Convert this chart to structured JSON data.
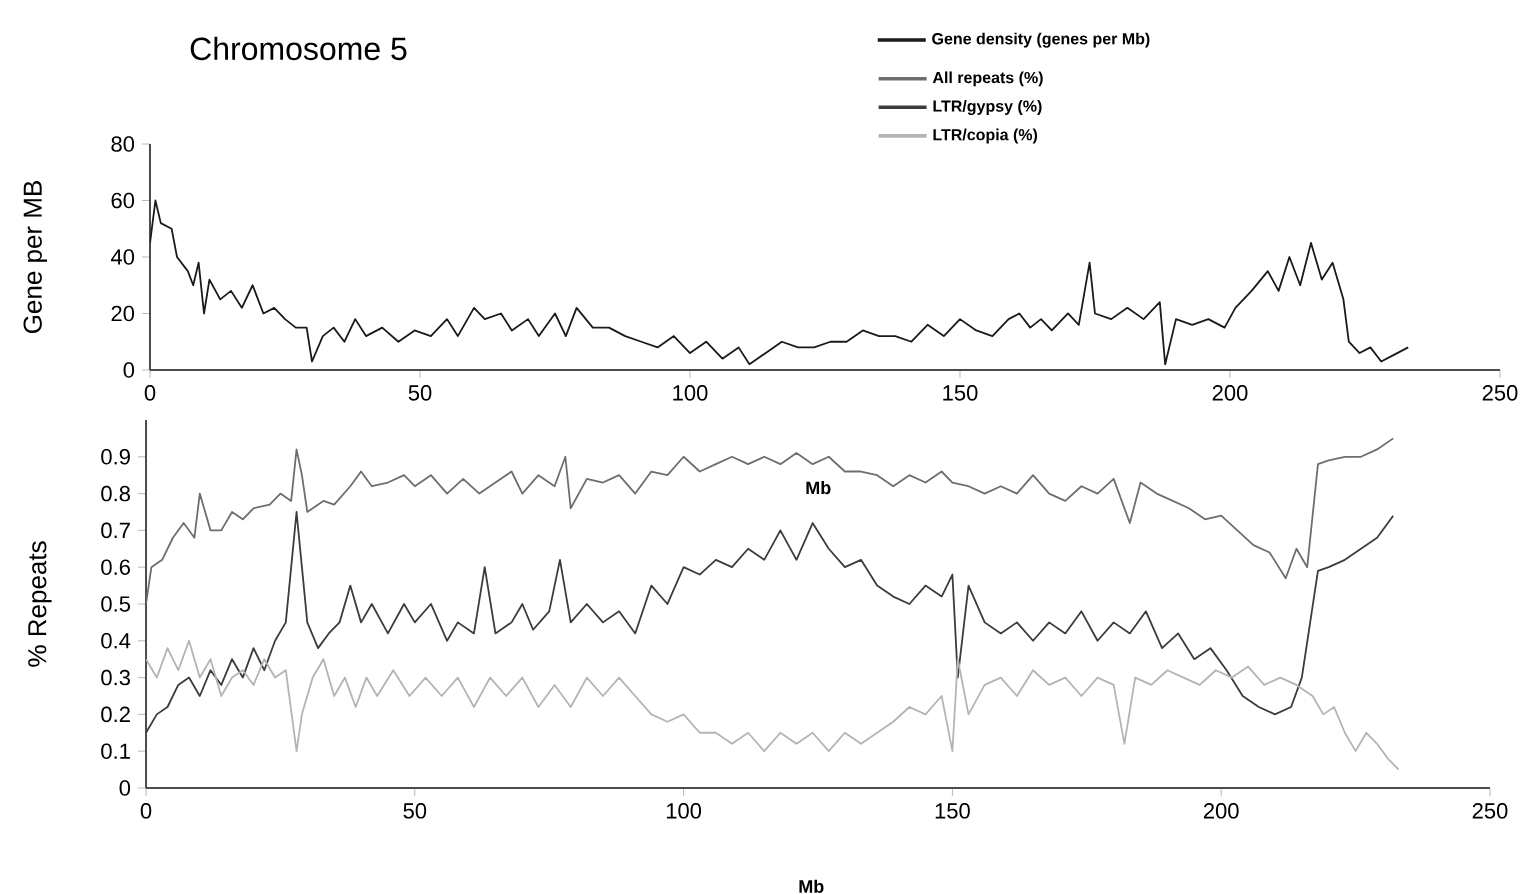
{
  "chart_data": [
    {
      "type": "line",
      "title": "Chromosome 5",
      "xlabel": "Mb",
      "ylabel": "Gene per MB",
      "xlim": [
        0,
        250
      ],
      "xticks": [
        0,
        50,
        100,
        150,
        200,
        250
      ],
      "ylim": [
        0,
        80
      ],
      "yticks": [
        0,
        20,
        40,
        60,
        80
      ],
      "legend": "top right",
      "series": [
        {
          "name": "Gene density (genes per Mb)",
          "color": "#1a1a1a",
          "x": [
            0,
            1,
            2,
            4,
            5,
            7,
            8,
            9,
            10,
            11,
            13,
            15,
            17,
            19,
            21,
            23,
            25,
            27,
            29,
            30,
            32,
            34,
            36,
            38,
            40,
            43,
            46,
            49,
            52,
            55,
            57,
            60,
            62,
            65,
            67,
            70,
            72,
            75,
            77,
            79,
            82,
            85,
            88,
            91,
            94,
            97,
            100,
            103,
            106,
            109,
            111,
            114,
            117,
            120,
            123,
            126,
            129,
            132,
            135,
            138,
            141,
            144,
            147,
            150,
            153,
            156,
            159,
            161,
            163,
            165,
            167,
            170,
            172,
            174,
            175,
            178,
            181,
            184,
            187,
            188,
            190,
            193,
            196,
            199,
            201,
            204,
            207,
            209,
            211,
            213,
            215,
            217,
            219,
            221,
            222,
            224,
            226,
            228,
            230,
            233
          ],
          "values": [
            45,
            60,
            52,
            50,
            40,
            35,
            30,
            38,
            20,
            32,
            25,
            28,
            22,
            30,
            20,
            22,
            18,
            15,
            15,
            3,
            12,
            15,
            10,
            18,
            12,
            15,
            10,
            14,
            12,
            18,
            12,
            22,
            18,
            20,
            14,
            18,
            12,
            20,
            12,
            22,
            15,
            15,
            12,
            10,
            8,
            12,
            6,
            10,
            4,
            8,
            2,
            6,
            10,
            8,
            8,
            10,
            10,
            14,
            12,
            12,
            10,
            16,
            12,
            18,
            14,
            12,
            18,
            20,
            15,
            18,
            14,
            20,
            16,
            38,
            20,
            18,
            22,
            18,
            24,
            2,
            18,
            16,
            18,
            15,
            22,
            28,
            35,
            28,
            40,
            30,
            45,
            32,
            38,
            25,
            10,
            6,
            8,
            3,
            5,
            8
          ]
        }
      ]
    },
    {
      "type": "line",
      "xlabel": "Mb",
      "ylabel": "% Repeats",
      "xlim": [
        0,
        250
      ],
      "xticks": [
        0,
        50,
        100,
        150,
        200,
        250
      ],
      "ylim": [
        0,
        1
      ],
      "yticks": [
        0,
        0.1,
        0.2,
        0.3,
        0.4,
        0.5,
        0.6,
        0.7,
        0.8,
        0.9
      ],
      "legend": "top right",
      "series": [
        {
          "name": "All repeats (%)",
          "color": "#6e6e6e",
          "x": [
            0,
            1,
            3,
            5,
            7,
            9,
            10,
            12,
            14,
            16,
            18,
            20,
            23,
            25,
            27,
            28,
            29,
            30,
            33,
            35,
            38,
            40,
            42,
            45,
            48,
            50,
            53,
            56,
            59,
            62,
            65,
            68,
            70,
            73,
            76,
            78,
            79,
            82,
            85,
            88,
            91,
            94,
            97,
            100,
            103,
            106,
            109,
            112,
            115,
            118,
            121,
            124,
            127,
            130,
            133,
            136,
            139,
            142,
            145,
            148,
            150,
            153,
            156,
            159,
            162,
            165,
            168,
            171,
            174,
            177,
            180,
            183,
            185,
            188,
            191,
            194,
            197,
            200,
            203,
            206,
            209,
            212,
            214,
            216,
            218,
            220,
            223,
            226,
            229,
            232
          ],
          "values": [
            0.5,
            0.6,
            0.62,
            0.68,
            0.72,
            0.68,
            0.8,
            0.7,
            0.7,
            0.75,
            0.73,
            0.76,
            0.77,
            0.8,
            0.78,
            0.92,
            0.85,
            0.75,
            0.78,
            0.77,
            0.82,
            0.86,
            0.82,
            0.83,
            0.85,
            0.82,
            0.85,
            0.8,
            0.84,
            0.8,
            0.83,
            0.86,
            0.8,
            0.85,
            0.82,
            0.9,
            0.76,
            0.84,
            0.83,
            0.85,
            0.8,
            0.86,
            0.85,
            0.9,
            0.86,
            0.88,
            0.9,
            0.88,
            0.9,
            0.88,
            0.91,
            0.88,
            0.9,
            0.86,
            0.86,
            0.85,
            0.82,
            0.85,
            0.83,
            0.86,
            0.83,
            0.82,
            0.8,
            0.82,
            0.8,
            0.85,
            0.8,
            0.78,
            0.82,
            0.8,
            0.84,
            0.72,
            0.83,
            0.8,
            0.78,
            0.76,
            0.73,
            0.74,
            0.7,
            0.66,
            0.64,
            0.57,
            0.65,
            0.6,
            0.88,
            0.89,
            0.9,
            0.9,
            0.92,
            0.95
          ]
        },
        {
          "name": "LTR/gypsy (%)",
          "color": "#3c3c3c",
          "x": [
            0,
            2,
            4,
            6,
            8,
            10,
            12,
            14,
            16,
            18,
            20,
            22,
            24,
            26,
            28,
            29,
            30,
            32,
            34,
            36,
            38,
            40,
            42,
            45,
            48,
            50,
            53,
            56,
            58,
            61,
            63,
            65,
            68,
            70,
            72,
            75,
            77,
            79,
            82,
            85,
            88,
            91,
            94,
            97,
            100,
            103,
            106,
            109,
            112,
            115,
            118,
            121,
            124,
            127,
            130,
            133,
            136,
            139,
            142,
            145,
            148,
            150,
            151,
            153,
            156,
            159,
            162,
            165,
            168,
            171,
            174,
            177,
            180,
            183,
            186,
            189,
            192,
            195,
            198,
            201,
            204,
            207,
            210,
            213,
            215,
            218,
            220,
            223,
            226,
            229,
            232
          ],
          "values": [
            0.15,
            0.2,
            0.22,
            0.28,
            0.3,
            0.25,
            0.32,
            0.28,
            0.35,
            0.3,
            0.38,
            0.32,
            0.4,
            0.45,
            0.75,
            0.6,
            0.45,
            0.38,
            0.42,
            0.45,
            0.55,
            0.45,
            0.5,
            0.42,
            0.5,
            0.45,
            0.5,
            0.4,
            0.45,
            0.42,
            0.6,
            0.42,
            0.45,
            0.5,
            0.43,
            0.48,
            0.62,
            0.45,
            0.5,
            0.45,
            0.48,
            0.42,
            0.55,
            0.5,
            0.6,
            0.58,
            0.62,
            0.6,
            0.65,
            0.62,
            0.7,
            0.62,
            0.72,
            0.65,
            0.6,
            0.62,
            0.55,
            0.52,
            0.5,
            0.55,
            0.52,
            0.58,
            0.3,
            0.55,
            0.45,
            0.42,
            0.45,
            0.4,
            0.45,
            0.42,
            0.48,
            0.4,
            0.45,
            0.42,
            0.48,
            0.38,
            0.42,
            0.35,
            0.38,
            0.32,
            0.25,
            0.22,
            0.2,
            0.22,
            0.3,
            0.59,
            0.6,
            0.62,
            0.65,
            0.68,
            0.74
          ]
        },
        {
          "name": "LTR/copia  (%)",
          "color": "#b4b4b4",
          "x": [
            0,
            2,
            4,
            6,
            8,
            10,
            12,
            14,
            16,
            18,
            20,
            22,
            24,
            26,
            28,
            29,
            31,
            33,
            35,
            37,
            39,
            41,
            43,
            46,
            49,
            52,
            55,
            58,
            61,
            64,
            67,
            70,
            73,
            76,
            79,
            82,
            85,
            88,
            91,
            94,
            97,
            100,
            103,
            106,
            109,
            112,
            115,
            118,
            121,
            124,
            127,
            130,
            133,
            136,
            139,
            142,
            145,
            148,
            150,
            151,
            153,
            156,
            159,
            162,
            165,
            168,
            171,
            174,
            177,
            180,
            182,
            184,
            187,
            190,
            193,
            196,
            199,
            202,
            205,
            208,
            211,
            214,
            217,
            219,
            221,
            223,
            225,
            227,
            229,
            231,
            233
          ],
          "values": [
            0.35,
            0.3,
            0.38,
            0.32,
            0.4,
            0.3,
            0.35,
            0.25,
            0.3,
            0.32,
            0.28,
            0.35,
            0.3,
            0.32,
            0.1,
            0.2,
            0.3,
            0.35,
            0.25,
            0.3,
            0.22,
            0.3,
            0.25,
            0.32,
            0.25,
            0.3,
            0.25,
            0.3,
            0.22,
            0.3,
            0.25,
            0.3,
            0.22,
            0.28,
            0.22,
            0.3,
            0.25,
            0.3,
            0.25,
            0.2,
            0.18,
            0.2,
            0.15,
            0.15,
            0.12,
            0.15,
            0.1,
            0.15,
            0.12,
            0.15,
            0.1,
            0.15,
            0.12,
            0.15,
            0.18,
            0.22,
            0.2,
            0.25,
            0.1,
            0.35,
            0.2,
            0.28,
            0.3,
            0.25,
            0.32,
            0.28,
            0.3,
            0.25,
            0.3,
            0.28,
            0.12,
            0.3,
            0.28,
            0.32,
            0.3,
            0.28,
            0.32,
            0.3,
            0.33,
            0.28,
            0.3,
            0.28,
            0.25,
            0.2,
            0.22,
            0.15,
            0.1,
            0.15,
            0.12,
            0.08,
            0.05
          ]
        }
      ]
    }
  ]
}
